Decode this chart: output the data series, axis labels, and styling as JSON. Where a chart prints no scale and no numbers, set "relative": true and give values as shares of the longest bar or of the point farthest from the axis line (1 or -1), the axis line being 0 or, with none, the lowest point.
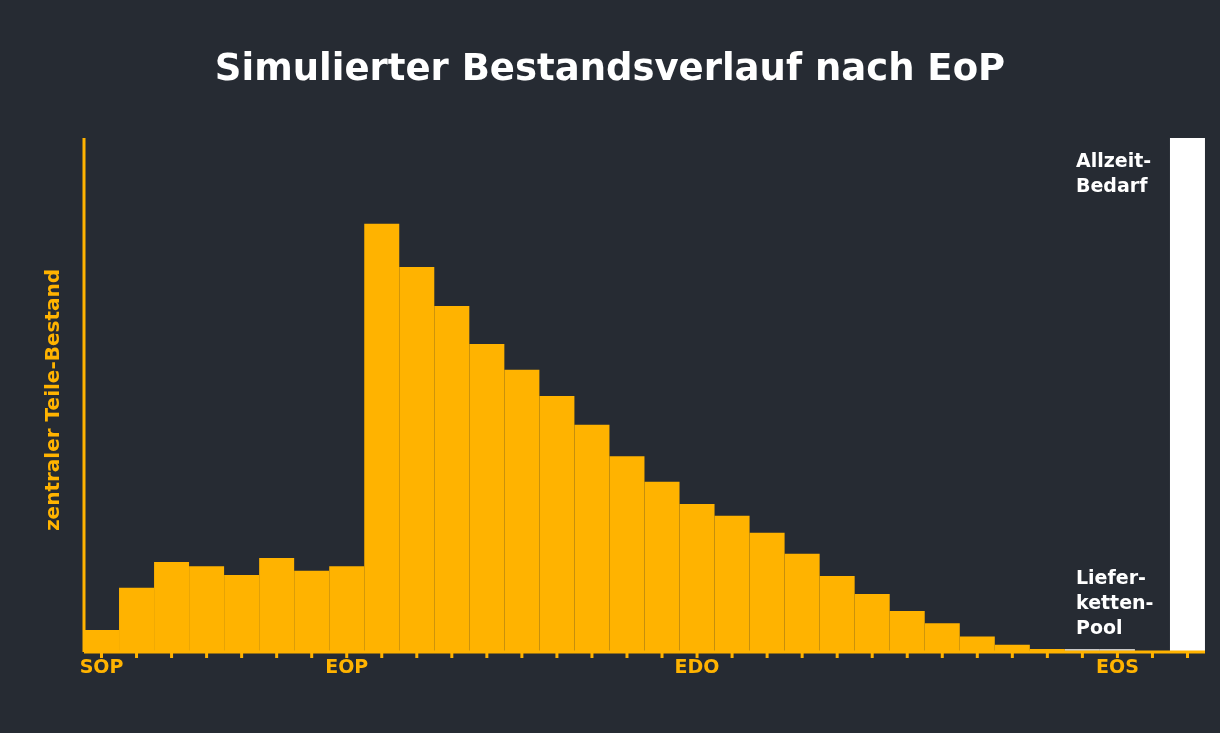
{
  "chart_data": {
    "type": "bar",
    "title": "Simulierter Bestandsverlauf nach EoP",
    "ylabel": "zentraler Teile-Bestand",
    "relative": true,
    "categories": [
      "SOP",
      null,
      null,
      null,
      null,
      null,
      null,
      "EOP",
      null,
      null,
      null,
      null,
      null,
      null,
      null,
      null,
      null,
      "EDO",
      null,
      null,
      null,
      null,
      null,
      null,
      null,
      null,
      null,
      null,
      null,
      "EOS",
      null,
      null
    ],
    "values": [
      0.043,
      0.125,
      0.175,
      0.167,
      0.15,
      0.183,
      0.158,
      0.167,
      0.833,
      0.749,
      0.673,
      0.599,
      0.549,
      0.498,
      0.442,
      0.381,
      0.331,
      0.288,
      0.265,
      0.232,
      0.191,
      0.148,
      0.113,
      0.08,
      0.056,
      0.03,
      0.014,
      0.006,
      0.006,
      0.006,
      0.002,
      1
    ],
    "colors": [
      "#ffb300",
      "#ffb300",
      "#ffb300",
      "#ffb300",
      "#ffb300",
      "#ffb300",
      "#ffb300",
      "#ffb300",
      "#ffb300",
      "#ffb300",
      "#ffb300",
      "#ffb300",
      "#ffb300",
      "#ffb300",
      "#ffb300",
      "#ffb300",
      "#ffb300",
      "#ffb300",
      "#ffb300",
      "#ffb300",
      "#ffb300",
      "#ffb300",
      "#ffb300",
      "#ffb300",
      "#ffb300",
      "#ffb300",
      "#ffb300",
      "#ffb300",
      "#c8c8c8",
      "#c8c8c8",
      "#ffb300",
      "#ffffff"
    ],
    "annotations": [
      "Allzeit-Bedarf",
      "Liefer-ketten-Pool"
    ],
    "grid": false,
    "legend": false
  }
}
